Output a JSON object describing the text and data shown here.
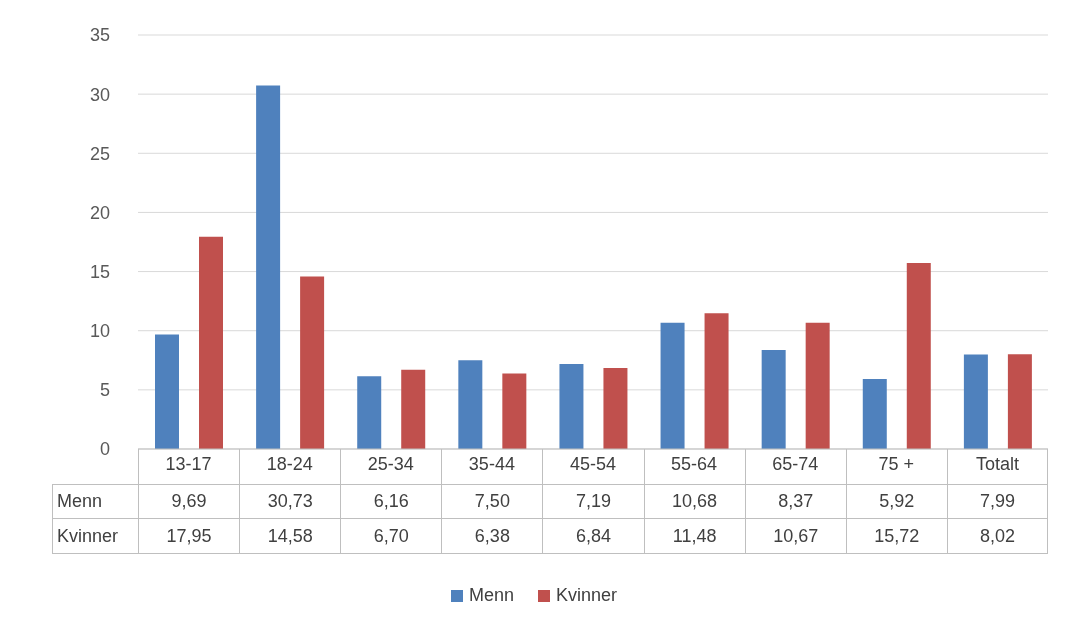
{
  "chart_data": {
    "type": "bar",
    "categories": [
      "13-17",
      "18-24",
      "25-34",
      "35-44",
      "45-54",
      "55-64",
      "65-74",
      "75 +",
      "Totalt"
    ],
    "series": [
      {
        "name": "Menn",
        "color": "#4f81bd",
        "values": [
          9.69,
          30.73,
          6.16,
          7.5,
          7.19,
          10.68,
          8.37,
          5.92,
          7.99
        ],
        "value_labels": [
          "9,69",
          "30,73",
          "6,16",
          "7,50",
          "7,19",
          "10,68",
          "8,37",
          "5,92",
          "7,99"
        ]
      },
      {
        "name": "Kvinner",
        "color": "#c0504d",
        "values": [
          17.95,
          14.58,
          6.7,
          6.38,
          6.84,
          11.48,
          10.67,
          15.72,
          8.02
        ],
        "value_labels": [
          "17,95",
          "14,58",
          "6,70",
          "6,38",
          "6,84",
          "11,48",
          "10,67",
          "15,72",
          "8,02"
        ]
      }
    ],
    "ylim": [
      0,
      35
    ],
    "yticks": [
      0,
      5,
      10,
      15,
      20,
      25,
      30,
      35
    ],
    "grid": "y",
    "legend": "bottom"
  }
}
